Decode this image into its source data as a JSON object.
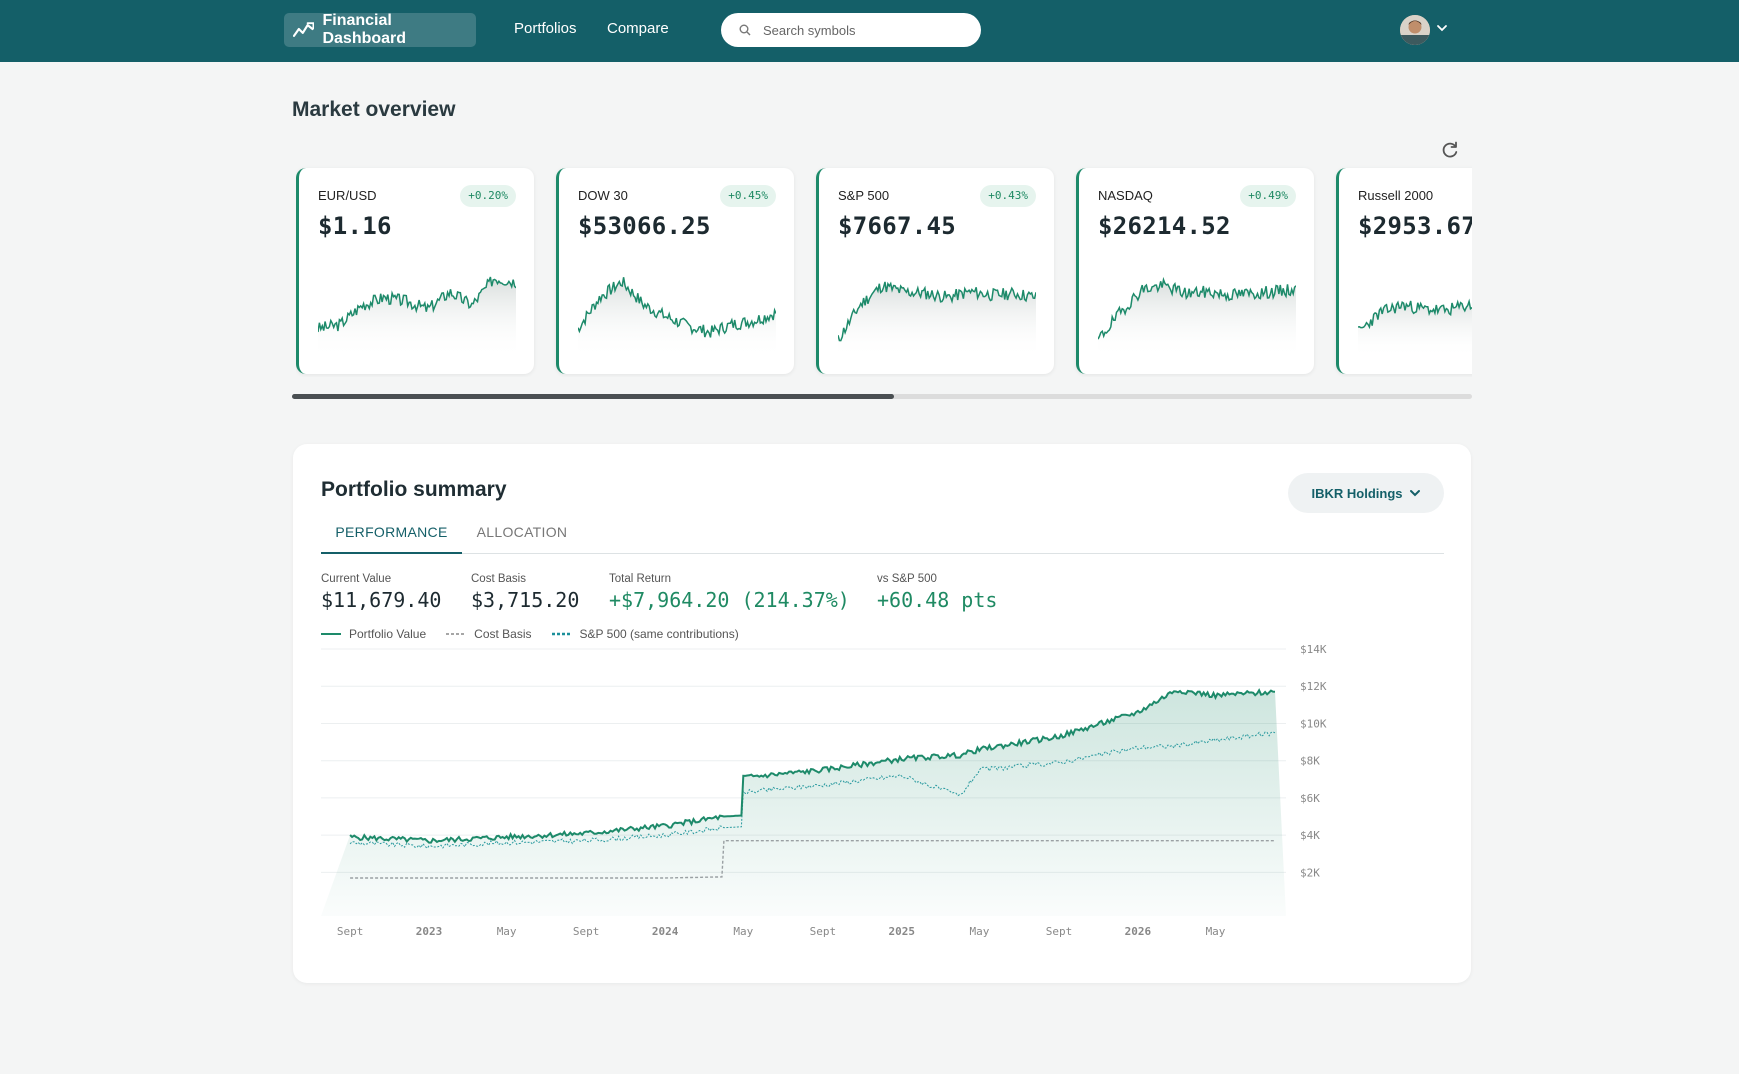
{
  "nav": {
    "brand": "Financial Dashboard",
    "links": [
      "Portfolios",
      "Compare"
    ],
    "search_placeholder": "Search symbols",
    "icons": {
      "brand": "trending-chart-icon",
      "search": "search-icon",
      "avatar": "user-avatar",
      "caret": "chevron-down-icon"
    }
  },
  "market": {
    "title": "Market overview",
    "refresh_icon": "refresh-icon",
    "cards": [
      {
        "name": "EUR/USD",
        "change": "+0.20%",
        "price": "$1.16"
      },
      {
        "name": "DOW 30",
        "change": "+0.45%",
        "price": "$53066.25"
      },
      {
        "name": "S&P 500",
        "change": "+0.43%",
        "price": "$7667.45"
      },
      {
        "name": "NASDAQ",
        "change": "+0.49%",
        "price": "$26214.52"
      },
      {
        "name": "Russell 2000",
        "change": "",
        "price": "$2953.67"
      }
    ],
    "scroll_fraction": 0.51
  },
  "portfolio": {
    "title": "Portfolio summary",
    "selector_label": "IBKR Holdings",
    "tabs": [
      "PERFORMANCE",
      "ALLOCATION"
    ],
    "active_tab": "PERFORMANCE",
    "stats": [
      {
        "label": "Current Value",
        "value": "$11,679.40",
        "positive": false
      },
      {
        "label": "Cost Basis",
        "value": "$3,715.20",
        "positive": false
      },
      {
        "label": "Total Return",
        "value": "+$7,964.20 (214.37%)",
        "positive": true
      },
      {
        "label": "vs S&P 500",
        "value": "+60.48 pts",
        "positive": true
      }
    ],
    "legend": [
      "Portfolio Value",
      "Cost Basis",
      "S&P 500 (same contributions)"
    ]
  },
  "colors": {
    "nav": "#145f68",
    "accent_green": "#1f8a63",
    "line": "#1d8a6a"
  },
  "chart_data": {
    "type": "area",
    "title": "",
    "xlabel": "",
    "ylabel": "",
    "x_ticks": [
      "Sept",
      "2023",
      "May",
      "Sept",
      "2024",
      "May",
      "Sept",
      "2025",
      "May",
      "Sept",
      "2026",
      "May"
    ],
    "y_ticks": [
      "$14K",
      "$12K",
      "$10K",
      "$8K",
      "$6K",
      "$4K",
      "$2K"
    ],
    "ylim": [
      1000,
      14000
    ],
    "x": [
      "2022-09",
      "2023-01",
      "2023-05",
      "2023-09",
      "2024-01",
      "2024-04",
      "2024-05",
      "2024-09",
      "2025-01",
      "2025-04",
      "2025-05",
      "2025-09",
      "2026-01",
      "2026-03",
      "2026-05",
      "2026-08"
    ],
    "series": [
      {
        "name": "Portfolio Value",
        "values": [
          3900,
          3700,
          3900,
          4100,
          4500,
          5000,
          7100,
          7500,
          8100,
          8300,
          8600,
          9300,
          10600,
          11800,
          11500,
          11700
        ]
      },
      {
        "name": "Cost Basis",
        "values": [
          1700,
          1700,
          1700,
          1700,
          1700,
          3700,
          3700,
          3700,
          3700,
          3700,
          3700,
          3700,
          3700,
          3700,
          3700,
          3700
        ]
      },
      {
        "name": "S&P 500 (same contributions)",
        "values": [
          3600,
          3400,
          3600,
          3700,
          4000,
          4400,
          6300,
          6700,
          7200,
          6100,
          7500,
          7900,
          8700,
          8800,
          9100,
          9500
        ]
      }
    ]
  }
}
